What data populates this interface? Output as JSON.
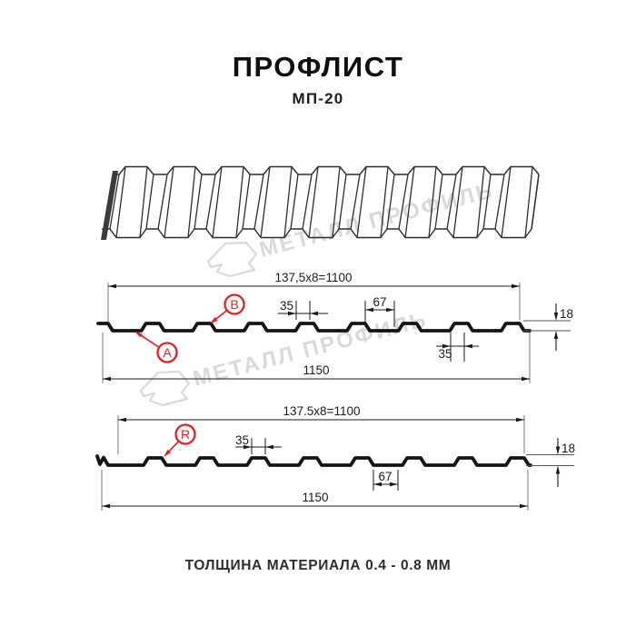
{
  "header": {
    "title": "ПРОФЛИСТ",
    "subtitle": "МП-20"
  },
  "footer": {
    "text": "ТОЛЩИНА МАТЕРИАЛА 0.4 - 0.8 ММ"
  },
  "watermark": {
    "text": "МЕТАЛЛ ПРОФИЛЬ"
  },
  "colors": {
    "accent_red": "#E31E24",
    "line": "#1A1A1A",
    "watermark_gray": "#D9D9D9"
  },
  "section_ab": {
    "pitch": "137,5x8=1100",
    "overall": "1150",
    "rib_top": "35",
    "flute": "67",
    "height": "18",
    "rib_top_lower": "35",
    "label_a": "A",
    "label_b": "B"
  },
  "section_r": {
    "pitch": "137.5x8=1100",
    "overall": "1150",
    "rib_top": "35",
    "flute": "67",
    "height": "18",
    "label_r": "R"
  }
}
